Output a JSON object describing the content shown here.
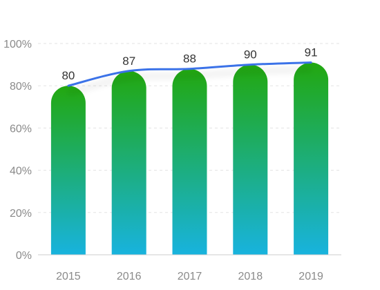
{
  "chart_data": {
    "type": "bar",
    "categories": [
      "2015",
      "2016",
      "2017",
      "2018",
      "2019"
    ],
    "values": [
      80,
      87,
      88,
      90,
      91
    ],
    "data_labels": [
      "80",
      "87",
      "88",
      "90",
      "91"
    ],
    "line_values": [
      80,
      87,
      88,
      90,
      91
    ],
    "y_ticks": [
      "0%",
      "20%",
      "40%",
      "60%",
      "80%",
      "100%"
    ],
    "ylim": [
      0,
      100
    ],
    "grid": true,
    "colors": {
      "bar_top": "#22a80f",
      "bar_bottom": "#18b3de",
      "line": "#3a72e8",
      "grid": "#e3e3e3",
      "axis": "#cccccc",
      "tick_text": "#8a8a8a",
      "label_text": "#333333"
    }
  }
}
